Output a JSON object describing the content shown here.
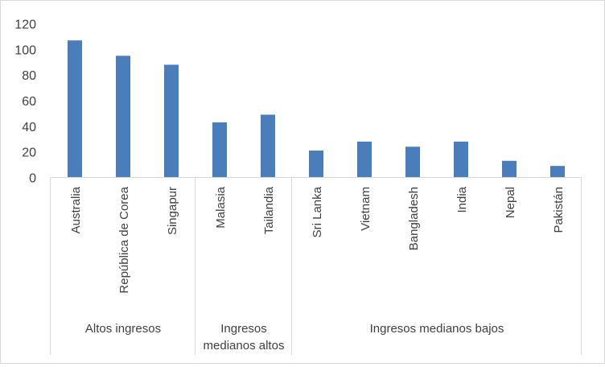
{
  "chart_data": {
    "type": "bar",
    "categories": [
      "Australia",
      "República de Corea",
      "Singapur",
      "Malasia",
      "Tailandia",
      "Sri Lanka",
      "Vietnam",
      "Bangladesh",
      "India",
      "Nepal",
      "Pakistán"
    ],
    "values": [
      107,
      95,
      88,
      43,
      49,
      21,
      28,
      24,
      28,
      13,
      9
    ],
    "groups": [
      {
        "label": "Altos ingresos",
        "count": 3
      },
      {
        "label": "Ingresos medianos altos",
        "count": 2
      },
      {
        "label": "Ingresos medianos bajos",
        "count": 6
      }
    ],
    "ylim": [
      0,
      120
    ],
    "yticks": [
      0,
      20,
      40,
      60,
      80,
      100,
      120
    ],
    "title": "",
    "xlabel": "",
    "ylabel": "",
    "legend": "none",
    "grid": false,
    "bar_color": "#4a7ebb",
    "axis_color": "#d9d9d9"
  }
}
